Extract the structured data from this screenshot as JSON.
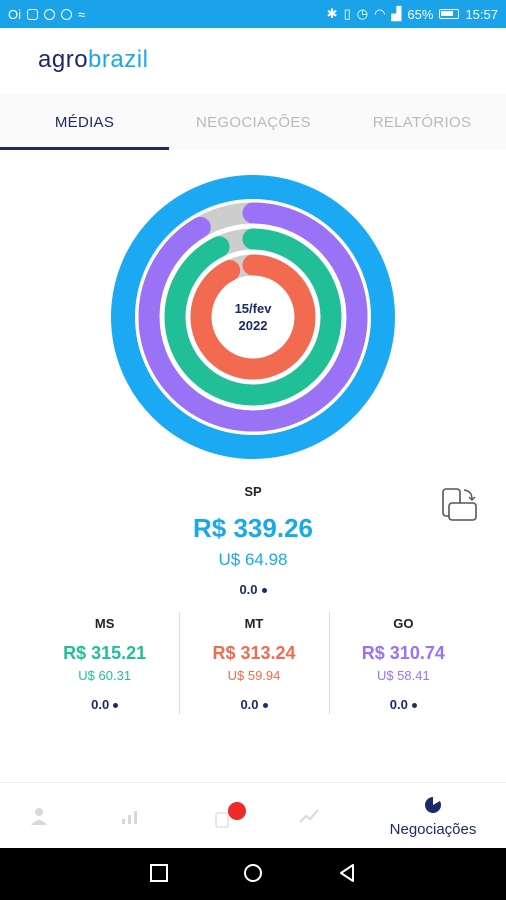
{
  "statusbar": {
    "carrier": "Oi",
    "battery": "65%",
    "time": "15:57"
  },
  "app": {
    "logo_part1": "agro",
    "logo_part2": "brazil"
  },
  "tabs": [
    {
      "label": "MÉDIAS",
      "active": true
    },
    {
      "label": "NEGOCIAÇÕES",
      "active": false
    },
    {
      "label": "RELATÓRIOS",
      "active": false
    }
  ],
  "ring": {
    "date_line1": "15/fev",
    "date_line2": "2022",
    "colors": {
      "sp": "#1aa9f2",
      "go": "#9a72f5",
      "ms": "#21bf97",
      "mt": "#f26a4f",
      "track": "#cdcdcd"
    },
    "fractions": {
      "sp": 1.0,
      "go": 0.915,
      "ms": 0.928,
      "mt": 0.925
    }
  },
  "main_state": {
    "name": "SP",
    "price_brl": "R$ 339.26",
    "price_usd": "U$ 64.98",
    "variation": "0.0"
  },
  "states": [
    {
      "name": "MS",
      "price_brl": "R$ 315.21",
      "price_usd": "U$ 60.31",
      "variation": "0.0",
      "color": "#21bf97"
    },
    {
      "name": "MT",
      "price_brl": "R$ 313.24",
      "price_usd": "U$ 59.94",
      "variation": "0.0",
      "color": "#f26a4f"
    },
    {
      "name": "GO",
      "price_brl": "R$ 310.74",
      "price_usd": "U$ 58.41",
      "variation": "0.0",
      "color": "#9a72f5"
    }
  ],
  "bottom_nav": {
    "icons": [
      "profile-icon",
      "bar-chart-icon",
      "notification-icon",
      "trend-icon",
      "negotiations-icon"
    ],
    "active_label": "Negociações"
  }
}
